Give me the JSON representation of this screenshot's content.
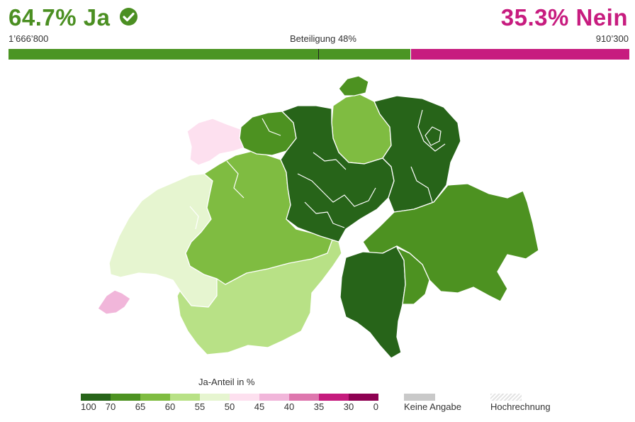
{
  "result": {
    "yes_label": "64.7% Ja",
    "no_label": "35.3% Nein",
    "yes_votes": "1’666’800",
    "no_votes": "910’300",
    "turnout": "Beteiligung 48%",
    "yes_share": 64.7,
    "no_share": 35.3,
    "colors": {
      "yes": "#4b9523",
      "no": "#c71c7f"
    }
  },
  "legend": {
    "title": "Ja-Anteil in %",
    "ticks": [
      "100",
      "70",
      "65",
      "60",
      "55",
      "50",
      "45",
      "40",
      "35",
      "30",
      "0"
    ],
    "bins": [
      {
        "from": 70,
        "to": 100,
        "color": "#276419"
      },
      {
        "from": 65,
        "to": 70,
        "color": "#4d9221"
      },
      {
        "from": 60,
        "to": 65,
        "color": "#7fbc41"
      },
      {
        "from": 55,
        "to": 60,
        "color": "#b8e186"
      },
      {
        "from": 50,
        "to": 55,
        "color": "#e6f5d0"
      },
      {
        "from": 45,
        "to": 50,
        "color": "#fde0ef"
      },
      {
        "from": 40,
        "to": 45,
        "color": "#f1b6da"
      },
      {
        "from": 35,
        "to": 40,
        "color": "#de77ae"
      },
      {
        "from": 30,
        "to": 35,
        "color": "#c51b7d"
      },
      {
        "from": 0,
        "to": 30,
        "color": "#8e0152"
      }
    ],
    "no_data_label": "Keine Angabe",
    "projection_label": "Hochrechnung"
  },
  "map": {
    "regions": [
      {
        "id": "northwest-jura",
        "class": "45-50",
        "color": "#fde0ef"
      },
      {
        "id": "west-lake",
        "class": "50-55",
        "color": "#e6f5d0"
      },
      {
        "id": "geneva",
        "class": "40-45",
        "color": "#f1b6da"
      },
      {
        "id": "west-central",
        "class": "60-65",
        "color": "#7fbc41"
      },
      {
        "id": "southwest",
        "class": "55-60",
        "color": "#b8e186"
      },
      {
        "id": "north-east-plateau",
        "class": "60-65",
        "color": "#7fbc41"
      },
      {
        "id": "central",
        "class": "70-100",
        "color": "#276419"
      },
      {
        "id": "east",
        "class": "70-100",
        "color": "#276419"
      },
      {
        "id": "southeast",
        "class": "65-70",
        "color": "#4d9221"
      },
      {
        "id": "south",
        "class": "70-100",
        "color": "#276419"
      }
    ]
  }
}
